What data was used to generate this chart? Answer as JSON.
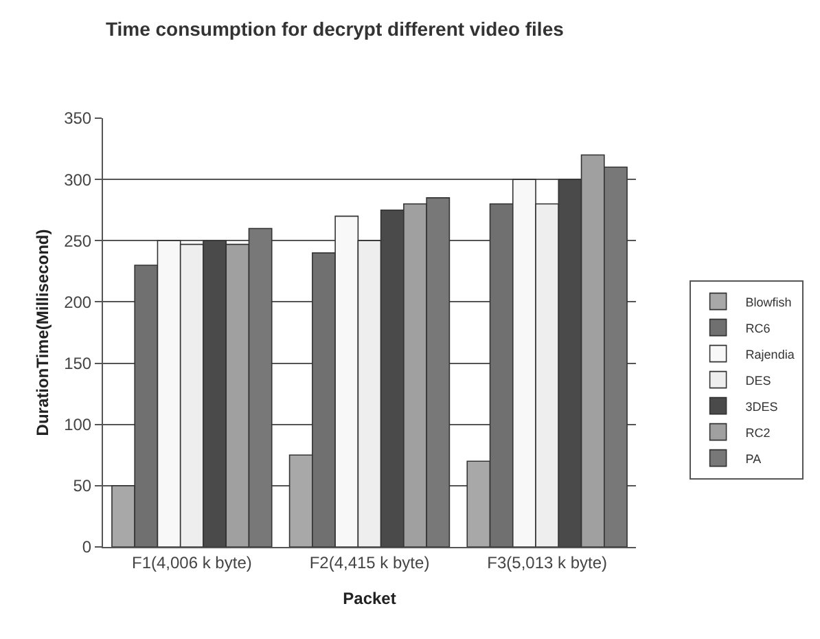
{
  "chart_data": {
    "type": "bar",
    "title": "Time consumption for decrypt different video files",
    "xlabel": "Packet",
    "ylabel": "DurationTime(Millisecond)",
    "categories": [
      "F1(4,006 k byte)",
      "F2(4,415 k byte)",
      "F3(5,013 k byte)"
    ],
    "series": [
      {
        "name": "Blowfish",
        "color": "#a8a8a8",
        "values": [
          50,
          75,
          70
        ]
      },
      {
        "name": "RC6",
        "color": "#707070",
        "values": [
          230,
          240,
          280
        ]
      },
      {
        "name": "Rajendia",
        "color": "#f8f8f8",
        "values": [
          250,
          270,
          300
        ]
      },
      {
        "name": "DES",
        "color": "#eeeeee",
        "values": [
          247,
          250,
          280
        ]
      },
      {
        "name": "3DES",
        "color": "#4a4a4a",
        "values": [
          250,
          275,
          300
        ]
      },
      {
        "name": "RC2",
        "color": "#a0a0a0",
        "values": [
          247,
          280,
          320
        ]
      },
      {
        "name": "PA",
        "color": "#787878",
        "values": [
          260,
          285,
          310
        ]
      }
    ],
    "ylim": [
      0,
      350
    ],
    "yticks": [
      0,
      50,
      100,
      150,
      200,
      250,
      300,
      350
    ],
    "grid": "y",
    "legend": "right"
  }
}
